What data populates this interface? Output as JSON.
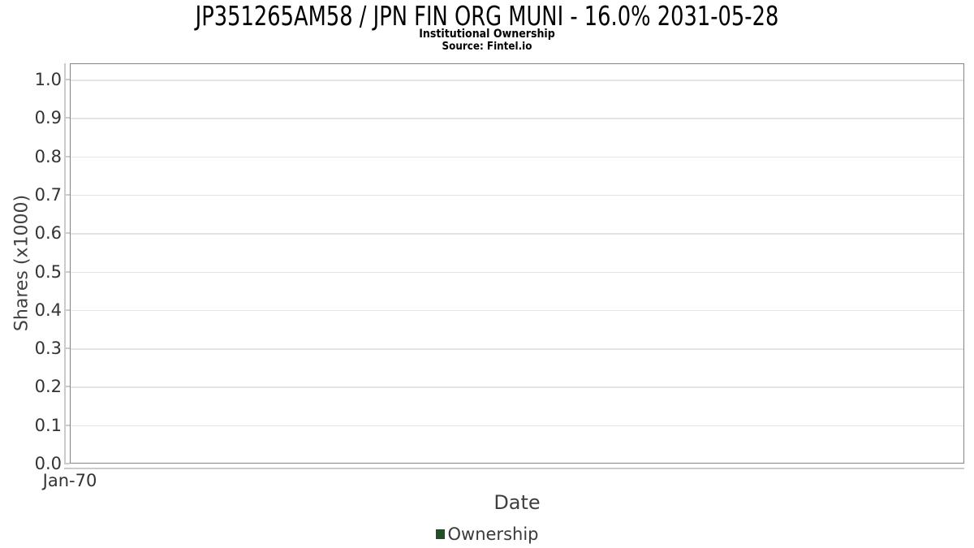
{
  "chart_data": {
    "type": "line",
    "title": "JP351265AM58 / JPN FIN ORG MUNI - 16.0% 2031-05-28",
    "subtitle": "Institutional Ownership",
    "source_note": "Source: Fintel.io",
    "xlabel": "Date",
    "ylabel": "Shares (x1000)",
    "x_axis": {
      "tick_labels": [
        "Jan-70"
      ]
    },
    "y_axis": {
      "tick_values": [
        0.0,
        0.1,
        0.2,
        0.3,
        0.4,
        0.5,
        0.6,
        0.7,
        0.8,
        0.9,
        1.0
      ],
      "tick_labels": [
        "0.0",
        "0.1",
        "0.2",
        "0.3",
        "0.4",
        "0.5",
        "0.6",
        "0.7",
        "0.8",
        "0.9",
        "1.0"
      ],
      "range": [
        0.0,
        1.04
      ]
    },
    "grid": "horizontal-only",
    "legend_position": "bottom-center",
    "series": [
      {
        "name": "Ownership",
        "color": "#234e2a",
        "points": []
      }
    ]
  },
  "colors": {
    "background": "#ffffff",
    "title_text": "#000000",
    "tick_label_text": "#333333",
    "axis_title_text": "#404040",
    "gridline": "#e4e4e4",
    "plot_border": "#848484",
    "axis_line": "#cccccc",
    "legend_marker_green": "#234e2a"
  }
}
